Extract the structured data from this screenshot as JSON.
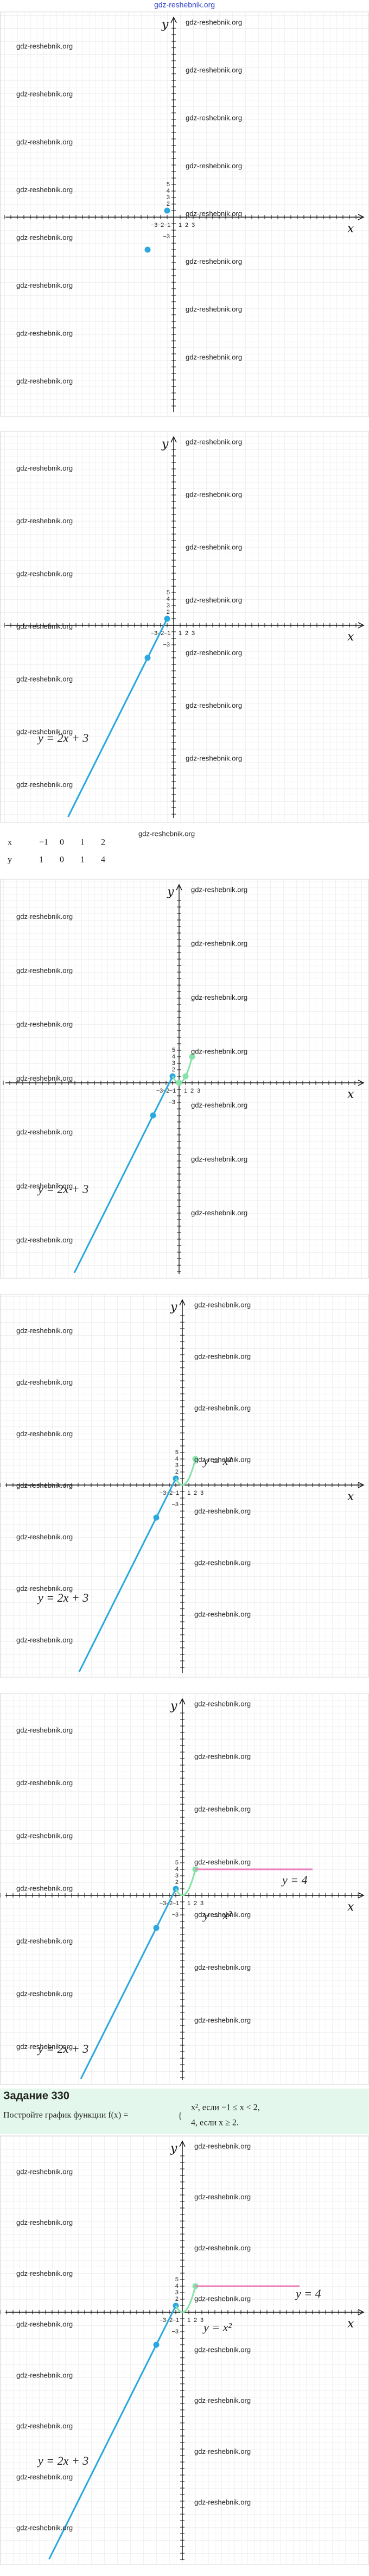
{
  "header": {
    "watermark": "gdz-reshebnik.org"
  },
  "axes": {
    "x_label": "x",
    "y_label": "y",
    "x_ticks": [
      "−3",
      "−2",
      "−1",
      "1",
      "2",
      "3"
    ],
    "y_ticks": [
      "1",
      "2",
      "3",
      "4",
      "5",
      "−3"
    ]
  },
  "panels": [
    {
      "labels": [],
      "watermarks": [
        "gdz-reshebnik.org",
        "gdz-reshebnik.org",
        "gdz-reshebnik.org",
        "gdz-reshebnik.org",
        "gdz-reshebnik.org",
        "gdz-reshebnik.org",
        "gdz-reshebnik.org",
        "gdz-reshebnik.org",
        "gdz-reshebnik.org",
        "gdz-reshebnik.org",
        "gdz-reshebnik.org",
        "gdz-reshebnik.org",
        "gdz-reshebnik.org",
        "gdz-reshebnik.org",
        "gdz-reshebnik.org",
        "gdz-reshebnik.org"
      ]
    },
    {
      "labels": [
        "y = 2x + 3"
      ],
      "watermarks": [
        "gdz-reshebnik.org",
        "gdz-reshebnik.org",
        "gdz-reshebnik.org",
        "gdz-reshebnik.org",
        "gdz-reshebnik.org",
        "gdz-reshebnik.org",
        "gdz-reshebnik.org",
        "gdz-reshebnik.org",
        "gdz-reshebnik.org",
        "gdz-reshebnik.org",
        "gdz-reshebnik.org",
        "gdz-reshebnik.org",
        "gdz-reshebnik.org",
        "gdz-reshebnik.org"
      ]
    },
    {
      "labels": [
        "y = 2x + 3"
      ],
      "watermarks": [
        "gdz-reshebnik.org",
        "gdz-reshebnik.org",
        "gdz-reshebnik.org",
        "gdz-reshebnik.org",
        "gdz-reshebnik.org",
        "gdz-reshebnik.org",
        "gdz-reshebnik.org",
        "gdz-reshebnik.org",
        "gdz-reshebnik.org",
        "gdz-reshebnik.org",
        "gdz-reshebnik.org",
        "gdz-reshebnik.org",
        "gdz-reshebnik.org",
        "gdz-reshebnik.org"
      ]
    },
    {
      "labels": [
        "y = x²",
        "y = 2x + 3"
      ],
      "watermarks": [
        "gdz-reshebnik.org",
        "gdz-reshebnik.org",
        "gdz-reshebnik.org",
        "gdz-reshebnik.org",
        "gdz-reshebnik.org",
        "gdz-reshebnik.org",
        "gdz-reshebnik.org",
        "gdz-reshebnik.org",
        "gdz-reshebnik.org",
        "gdz-reshebnik.org",
        "gdz-reshebnik.org",
        "gdz-reshebnik.org",
        "gdz-reshebnik.org",
        "gdz-reshebnik.org"
      ]
    },
    {
      "labels": [
        "y = 4",
        "y = x²",
        "y = 2x + 3"
      ],
      "watermarks": [
        "gdz-reshebnik.org",
        "gdz-reshebnik.org",
        "gdz-reshebnik.org",
        "gdz-reshebnik.org",
        "gdz-reshebnik.org",
        "gdz-reshebnik.org",
        "gdz-reshebnik.org",
        "gdz-reshebnik.org",
        "gdz-reshebnik.org",
        "gdz-reshebnik.org",
        "gdz-reshebnik.org",
        "gdz-reshebnik.org",
        "gdz-reshebnik.org",
        "gdz-reshebnik.org"
      ]
    },
    {
      "labels": [
        "y = 4",
        "y = x²",
        "y = 2x + 3"
      ],
      "watermarks": [
        "gdz-reshebnik.org",
        "gdz-reshebnik.org",
        "gdz-reshebnik.org",
        "gdz-reshebnik.org",
        "gdz-reshebnik.org",
        "gdz-reshebnik.org",
        "gdz-reshebnik.org",
        "gdz-reshebnik.org",
        "gdz-reshebnik.org",
        "gdz-reshebnik.org",
        "gdz-reshebnik.org",
        "gdz-reshebnik.org",
        "gdz-reshebnik.org",
        "gdz-reshebnik.org",
        "gdz-reshebnik.org",
        "gdz-reshebnik.org"
      ]
    }
  ],
  "table": {
    "rows": [
      [
        "x",
        "−1",
        "0",
        "1",
        "2"
      ],
      [
        "y",
        "1",
        "0",
        "1",
        "4"
      ]
    ],
    "watermark": "gdz-reshebnik.org"
  },
  "task": {
    "title": "Задание 330",
    "text": "Постройте график функции f(x) =",
    "case1": "x², если −1 ≤ x < 2,",
    "case2": "4, если x ≥ 2."
  }
}
